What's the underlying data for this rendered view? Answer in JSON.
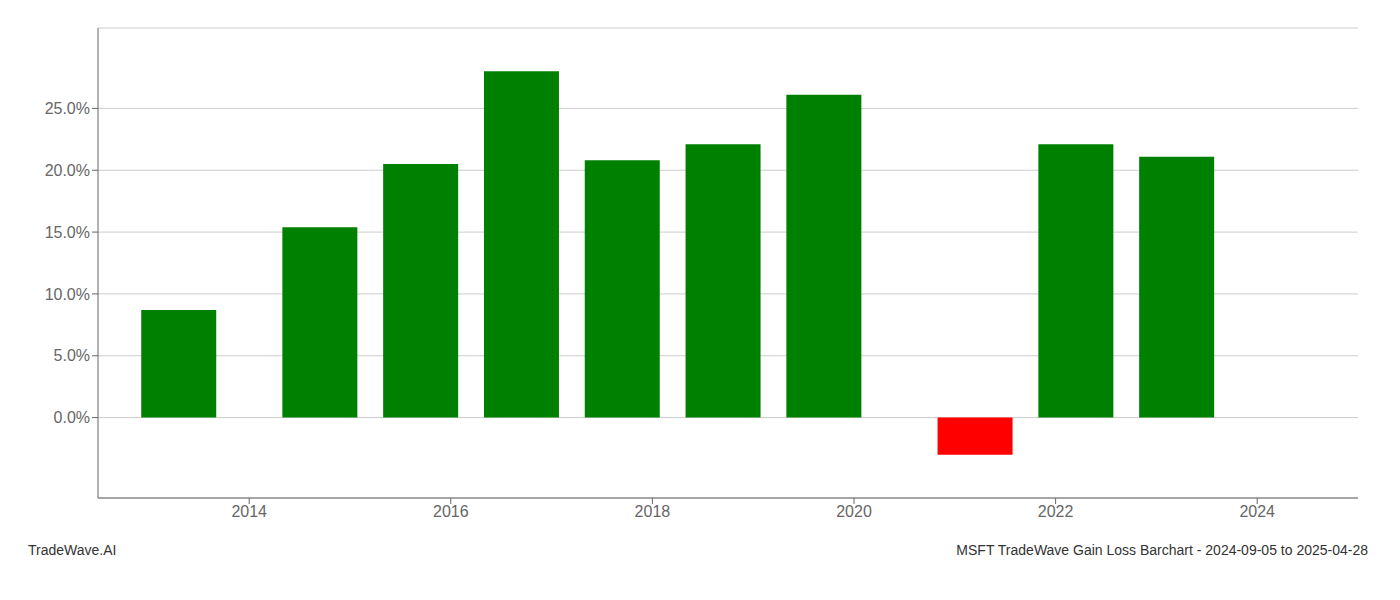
{
  "chart_data": {
    "type": "bar",
    "title": "MSFT TradeWave Gain Loss Barchart - 2024-09-05 to 2025-04-28",
    "annotations": [
      "TradeWave.AI"
    ],
    "x": [
      2013.3,
      2014.7,
      2015.7,
      2016.7,
      2017.7,
      2018.7,
      2019.7,
      2021.2,
      2022.2,
      2023.2
    ],
    "values": [
      0.087,
      0.154,
      0.205,
      0.28,
      0.208,
      0.221,
      0.261,
      -0.03,
      0.221,
      0.211
    ],
    "colors": [
      "#008000",
      "#008000",
      "#008000",
      "#008000",
      "#008000",
      "#008000",
      "#008000",
      "#ff0000",
      "#008000",
      "#008000"
    ],
    "xlim": [
      2012.5,
      2025.0
    ],
    "ylim": [
      -0.065,
      0.315
    ],
    "xticks": [
      2014,
      2016,
      2018,
      2020,
      2022,
      2024
    ],
    "yticks": [
      {
        "value": 0.0,
        "label": "0.0%"
      },
      {
        "value": 0.05,
        "label": "5.0%"
      },
      {
        "value": 0.1,
        "label": "10.0%"
      },
      {
        "value": 0.15,
        "label": "15.0%"
      },
      {
        "value": 0.2,
        "label": "20.0%"
      },
      {
        "value": 0.25,
        "label": "25.0%"
      }
    ],
    "grid": true
  }
}
